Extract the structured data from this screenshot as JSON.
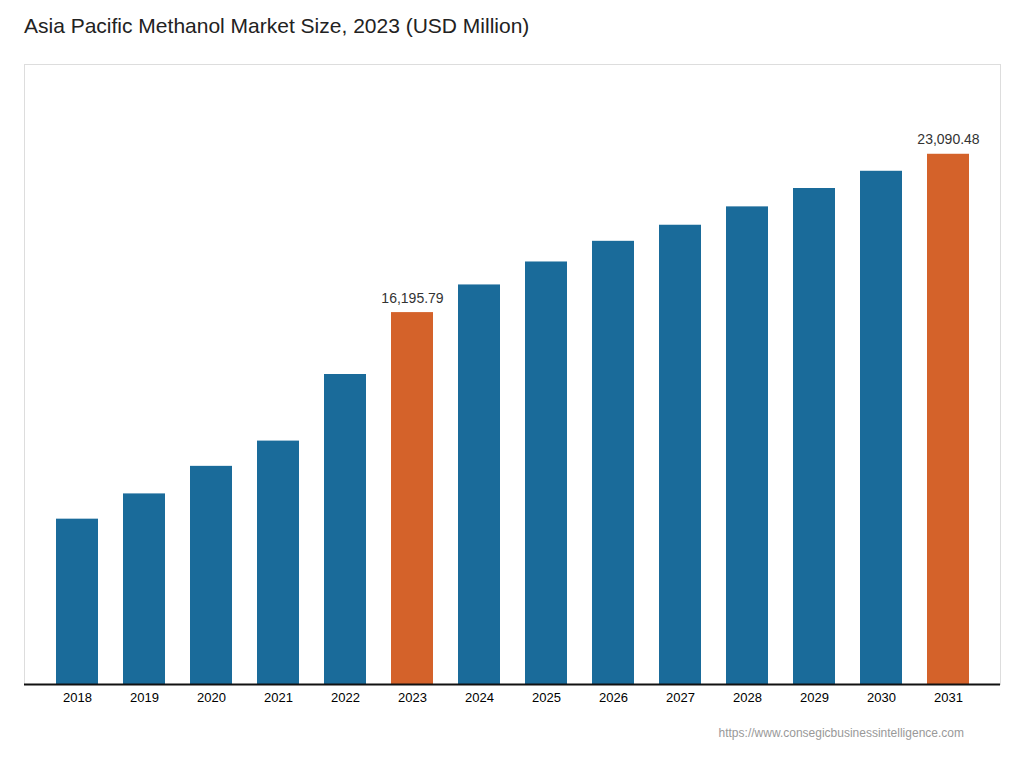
{
  "chart_data": {
    "type": "bar",
    "title": "Asia Pacific Methanol Market Size, 2023 (USD Million)",
    "categories": [
      "2018",
      "2019",
      "2020",
      "2021",
      "2022",
      "2023",
      "2024",
      "2025",
      "2026",
      "2027",
      "2028",
      "2029",
      "2030",
      "2031"
    ],
    "values": [
      7200,
      8300,
      9500,
      10600,
      13500,
      16195.79,
      17400,
      18400,
      19300,
      20000,
      20800,
      21600,
      22350,
      23090.48
    ],
    "colors": [
      "#1a6b9a",
      "#1a6b9a",
      "#1a6b9a",
      "#1a6b9a",
      "#1a6b9a",
      "#d4622a",
      "#1a6b9a",
      "#1a6b9a",
      "#1a6b9a",
      "#1a6b9a",
      "#1a6b9a",
      "#1a6b9a",
      "#1a6b9a",
      "#d4622a"
    ],
    "ylim": [
      0,
      27000
    ],
    "tick_labels": "x",
    "grid": false,
    "annotations": [
      {
        "x": "2023",
        "y": 16195.79,
        "text": "16,195.79"
      },
      {
        "x": "2031",
        "y": 23090.48,
        "text": "23,090.48"
      }
    ],
    "caption": "https://www.consegicbusinessintelligence.com"
  }
}
